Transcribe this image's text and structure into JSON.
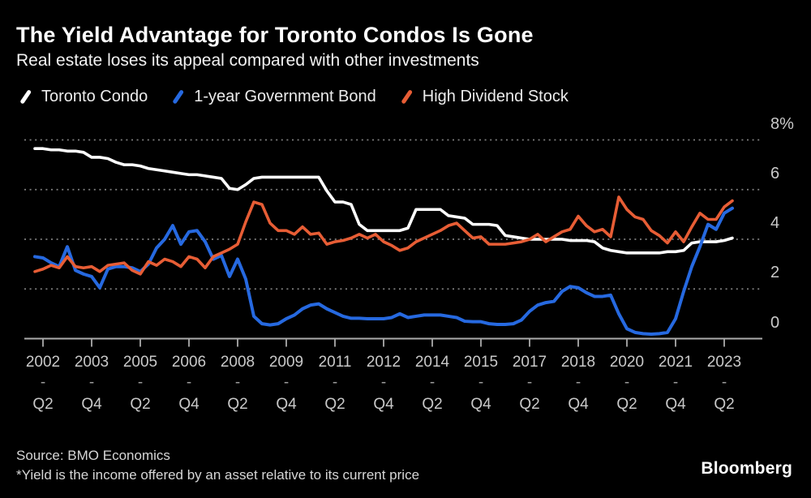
{
  "header": {
    "title": "The Yield Advantage for Toronto Condos Is Gone",
    "subtitle": "Real estate loses its appeal compared with other investments"
  },
  "legend": {
    "items": [
      {
        "label": "Toronto Condo",
        "color": "#ffffff"
      },
      {
        "label": "1-year Government Bond",
        "color": "#2669e0"
      },
      {
        "label": "High Dividend Stock",
        "color": "#e75d35"
      }
    ]
  },
  "chart_data": {
    "type": "line",
    "title": "The Yield Advantage for Toronto Condos Is Gone",
    "subtitle": "Real estate loses its appeal compared with other investments",
    "unit": "%",
    "x_start": "2002 Q1",
    "x_end": "2023 Q3",
    "frequency": "quarterly",
    "ylim": [
      0,
      8
    ],
    "grid": "dashed horizontal",
    "legend_position": "top",
    "y_ticks": [
      {
        "label": "8%",
        "value": 8
      },
      {
        "label": "6",
        "value": 6
      },
      {
        "label": "4",
        "value": 4
      },
      {
        "label": "2",
        "value": 2
      },
      {
        "label": "0",
        "value": 0
      }
    ],
    "x_tick_labels": [
      {
        "year": "2002",
        "sep": "-",
        "quarter": "Q2",
        "qi": 1
      },
      {
        "year": "2003",
        "sep": "-",
        "quarter": "Q4",
        "qi": 7
      },
      {
        "year": "2005",
        "sep": "-",
        "quarter": "Q2",
        "qi": 13
      },
      {
        "year": "2006",
        "sep": "-",
        "quarter": "Q4",
        "qi": 19
      },
      {
        "year": "2008",
        "sep": "-",
        "quarter": "Q2",
        "qi": 25
      },
      {
        "year": "2009",
        "sep": "-",
        "quarter": "Q4",
        "qi": 31
      },
      {
        "year": "2011",
        "sep": "-",
        "quarter": "Q2",
        "qi": 37
      },
      {
        "year": "2012",
        "sep": "-",
        "quarter": "Q4",
        "qi": 43
      },
      {
        "year": "2014",
        "sep": "-",
        "quarter": "Q2",
        "qi": 49
      },
      {
        "year": "2015",
        "sep": "-",
        "quarter": "Q4",
        "qi": 55
      },
      {
        "year": "2017",
        "sep": "-",
        "quarter": "Q2",
        "qi": 61
      },
      {
        "year": "2018",
        "sep": "-",
        "quarter": "Q4",
        "qi": 67
      },
      {
        "year": "2020",
        "sep": "-",
        "quarter": "Q2",
        "qi": 73
      },
      {
        "year": "2021",
        "sep": "-",
        "quarter": "Q4",
        "qi": 79
      },
      {
        "year": "2023",
        "sep": "-",
        "quarter": "Q2",
        "qi": 85
      }
    ],
    "series": [
      {
        "name": "Toronto Condo",
        "color": "#ffffff",
        "values": [
          7.65,
          7.65,
          7.6,
          7.6,
          7.55,
          7.55,
          7.5,
          7.3,
          7.3,
          7.25,
          7.1,
          7.0,
          7.0,
          6.95,
          6.85,
          6.8,
          6.75,
          6.7,
          6.65,
          6.6,
          6.6,
          6.55,
          6.5,
          6.45,
          6.05,
          6.0,
          6.2,
          6.45,
          6.5,
          6.5,
          6.5,
          6.5,
          6.5,
          6.5,
          6.5,
          6.5,
          5.95,
          5.5,
          5.5,
          5.4,
          4.6,
          4.35,
          4.35,
          4.35,
          4.35,
          4.35,
          4.45,
          5.2,
          5.2,
          5.2,
          5.2,
          4.95,
          4.9,
          4.85,
          4.6,
          4.6,
          4.6,
          4.55,
          4.15,
          4.1,
          4.05,
          4.0,
          4.0,
          4.0,
          4.0,
          4.0,
          3.95,
          3.95,
          3.95,
          3.9,
          3.65,
          3.55,
          3.5,
          3.45,
          3.45,
          3.45,
          3.45,
          3.45,
          3.5,
          3.5,
          3.55,
          3.85,
          3.9,
          3.9,
          3.9,
          3.95,
          4.05
        ]
      },
      {
        "name": "1-year Government Bond",
        "color": "#2669e0",
        "values": [
          3.3,
          3.25,
          3.05,
          2.9,
          3.7,
          2.75,
          2.6,
          2.5,
          2.05,
          2.8,
          2.9,
          2.9,
          2.85,
          2.7,
          3.0,
          3.65,
          4.0,
          4.55,
          3.8,
          4.3,
          4.35,
          3.9,
          3.2,
          3.35,
          2.5,
          3.2,
          2.4,
          0.9,
          0.6,
          0.55,
          0.6,
          0.8,
          0.95,
          1.2,
          1.35,
          1.4,
          1.2,
          1.05,
          0.9,
          0.82,
          0.82,
          0.8,
          0.8,
          0.8,
          0.85,
          1.0,
          0.85,
          0.9,
          0.95,
          0.95,
          0.95,
          0.9,
          0.85,
          0.7,
          0.68,
          0.68,
          0.6,
          0.57,
          0.57,
          0.6,
          0.75,
          1.1,
          1.35,
          1.45,
          1.5,
          1.9,
          2.1,
          2.05,
          1.85,
          1.7,
          1.7,
          1.75,
          1.0,
          0.4,
          0.25,
          0.2,
          0.18,
          0.2,
          0.25,
          0.8,
          1.9,
          2.9,
          3.7,
          4.6,
          4.4,
          5.05,
          5.25
        ]
      },
      {
        "name": "High Dividend Stock",
        "color": "#e75d35",
        "values": [
          2.7,
          2.8,
          2.95,
          2.85,
          3.3,
          2.9,
          2.85,
          2.9,
          2.7,
          2.95,
          3.0,
          3.05,
          2.75,
          2.6,
          3.1,
          2.95,
          3.2,
          3.1,
          2.9,
          3.3,
          3.2,
          2.85,
          3.3,
          3.45,
          3.6,
          3.8,
          4.7,
          5.5,
          5.4,
          4.65,
          4.35,
          4.35,
          4.2,
          4.5,
          4.2,
          4.25,
          3.8,
          3.9,
          3.95,
          4.05,
          4.2,
          4.05,
          4.2,
          3.9,
          3.75,
          3.55,
          3.65,
          3.9,
          4.05,
          4.2,
          4.35,
          4.55,
          4.65,
          4.35,
          4.05,
          4.1,
          3.8,
          3.8,
          3.8,
          3.85,
          3.9,
          4.0,
          4.2,
          3.9,
          4.1,
          4.3,
          4.4,
          4.93,
          4.55,
          4.3,
          4.4,
          4.1,
          5.7,
          5.2,
          4.9,
          4.8,
          4.35,
          4.15,
          3.85,
          4.3,
          3.9,
          4.5,
          5.05,
          4.8,
          4.8,
          5.3,
          5.55
        ]
      }
    ]
  },
  "footer": {
    "source": "Source: BMO Economics",
    "note": "*Yield is the income offered by an asset relative to its current price",
    "logo": "Bloomberg"
  }
}
